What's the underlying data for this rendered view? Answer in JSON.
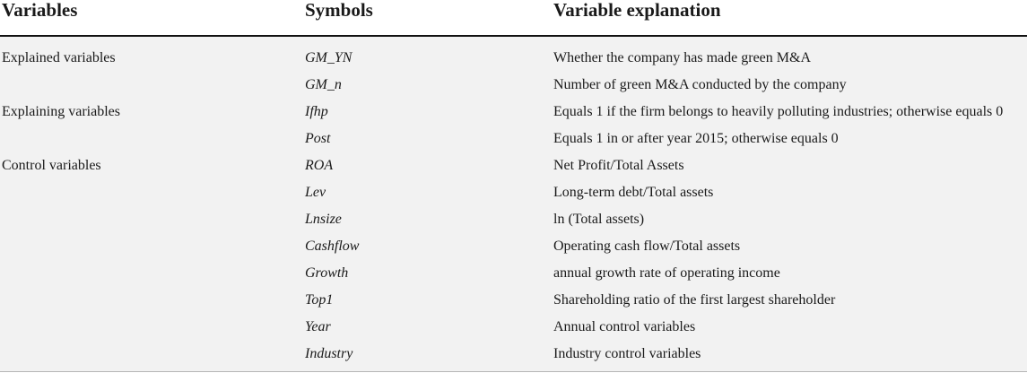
{
  "headers": {
    "variables": "Variables",
    "symbols": "Symbols",
    "explanation": "Variable explanation"
  },
  "rows": [
    {
      "category": "Explained variables",
      "symbol": "GM_YN",
      "explanation": "Whether the company has made green M&A"
    },
    {
      "category": "",
      "symbol": "GM_n",
      "explanation": "Number of green M&A conducted by the company"
    },
    {
      "category": "Explaining variables",
      "symbol": "Ifhp",
      "explanation": "Equals 1 if the firm belongs to heavily polluting industries; otherwise equals 0"
    },
    {
      "category": "",
      "symbol": "Post",
      "explanation": "Equals 1 in or after year 2015; otherwise equals 0"
    },
    {
      "category": "Control variables",
      "symbol": "ROA",
      "explanation": "Net Profit/Total Assets"
    },
    {
      "category": "",
      "symbol": "Lev",
      "explanation": "Long-term debt/Total assets"
    },
    {
      "category": "",
      "symbol": "Lnsize",
      "explanation": "ln (Total assets)"
    },
    {
      "category": "",
      "symbol": "Cashflow",
      "explanation": "Operating cash flow/Total assets"
    },
    {
      "category": "",
      "symbol": "Growth",
      "explanation": "annual growth rate of operating income"
    },
    {
      "category": "",
      "symbol": "Top1",
      "explanation": "Shareholding ratio of the first largest shareholder"
    },
    {
      "category": "",
      "symbol": "Year",
      "explanation": "Annual control variables"
    },
    {
      "category": "",
      "symbol": "Industry",
      "explanation": "Industry control variables"
    }
  ]
}
